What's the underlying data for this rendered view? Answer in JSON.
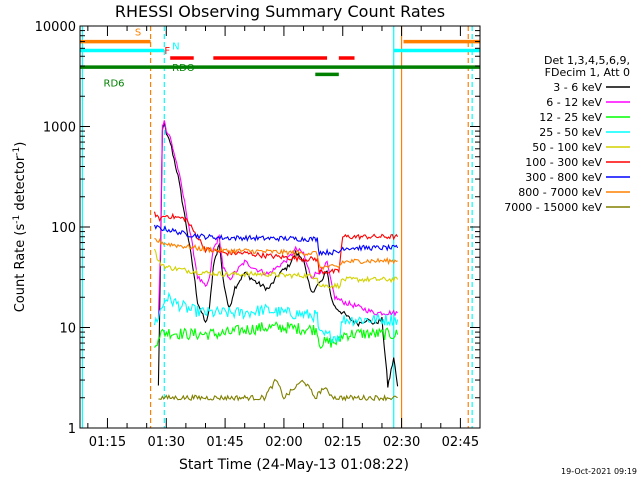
{
  "chart_data": {
    "type": "line",
    "title": "RHESSI Observing Summary Count Rates",
    "xlabel": "Start Time (24-May-13 01:08:22)",
    "ylabel_main": "Count Rate (s",
    "ylabel_sup1": "-1",
    "ylabel_mid": " detector",
    "ylabel_sup2": "-1",
    "ylabel_end": ")",
    "footer": "19-Oct-2021 09:19",
    "y_scale": "log",
    "ylim": [
      1,
      10000
    ],
    "xlim_minutes": [
      68,
      170
    ],
    "x_ticks": [
      {
        "label": "01:15",
        "minutes": 75
      },
      {
        "label": "01:30",
        "minutes": 90
      },
      {
        "label": "01:45",
        "minutes": 105
      },
      {
        "label": "02:00",
        "minutes": 120
      },
      {
        "label": "02:15",
        "minutes": 135
      },
      {
        "label": "02:30",
        "minutes": 150
      },
      {
        "label": "02:45",
        "minutes": 165
      }
    ],
    "y_ticks": [
      {
        "label": "1",
        "value": 1
      },
      {
        "label": "10",
        "value": 10
      },
      {
        "label": "100",
        "value": 100
      },
      {
        "label": "1000",
        "value": 1000
      },
      {
        "label": "10000",
        "value": 10000
      }
    ],
    "legend_header": [
      "Det 1,3,4,5,6,9,",
      "FDecim 1, Att 0"
    ],
    "legend_placement": "right",
    "series": [
      {
        "name": "3 - 6 keV",
        "color": "#000000",
        "x": [
          88.0,
          88.5,
          89.0,
          89.5,
          90.0,
          91.0,
          93.0,
          95.0,
          97.0,
          98.0,
          100.0,
          101.0,
          102.0,
          103.5,
          104.5,
          106.0,
          107.5,
          110.0,
          113.0,
          116.0,
          119.0,
          121.0,
          123.0,
          125.0,
          126.0,
          127.0,
          128.0,
          130.0,
          131.0,
          132.0,
          133.0,
          135.0,
          137.0,
          139.0,
          141.0,
          143.0,
          145.0,
          146.5,
          147.0,
          148.0,
          149.0
        ],
        "y": [
          2.6,
          40,
          900,
          1100,
          820,
          700,
          320,
          110,
          35,
          18,
          11,
          15,
          40,
          70,
          30,
          15,
          25,
          35,
          28,
          24,
          35,
          40,
          55,
          48,
          30,
          22,
          25,
          30,
          38,
          20,
          16,
          14,
          12,
          11,
          12,
          11,
          12,
          2.6,
          3.2,
          5,
          2.6
        ]
      },
      {
        "name": "6 - 12 keV",
        "color": "#ff00ff",
        "x": [
          88.0,
          88.5,
          89.0,
          89.5,
          90.0,
          91.0,
          93.0,
          95.0,
          97.0,
          98.0,
          100.0,
          101.0,
          102.0,
          103.5,
          104.5,
          106.0,
          107.5,
          110.0,
          113.0,
          116.0,
          119.0,
          121.0,
          123.0,
          125.0,
          126.0,
          127.0,
          128.0,
          130.0,
          131.0,
          132.0,
          133.0,
          135.0,
          137.0,
          139.0,
          141.0,
          143.0,
          145.0,
          146.5,
          147.0,
          148.0,
          149.0
        ],
        "y": [
          12,
          60,
          1000,
          1200,
          900,
          780,
          380,
          150,
          55,
          32,
          25,
          30,
          60,
          80,
          40,
          30,
          35,
          45,
          38,
          34,
          42,
          48,
          60,
          55,
          40,
          32,
          34,
          38,
          44,
          28,
          20,
          18,
          17,
          16,
          15,
          14,
          14,
          14,
          14,
          14,
          14
        ]
      },
      {
        "name": "12 - 25 keV",
        "color": "#00ff00",
        "x": [
          87.0,
          88.0,
          90.0,
          95.0,
          100.0,
          105.0,
          110.0,
          115.0,
          120.0,
          125.0,
          128.5,
          129.0,
          132.0,
          134.0,
          135.0,
          140.0,
          145.0,
          149.0
        ],
        "y": [
          6.0,
          8.5,
          9.0,
          8.6,
          8.6,
          8.7,
          9.5,
          10.0,
          10.0,
          9.7,
          9.6,
          7.0,
          7.1,
          7.2,
          8.5,
          8.7,
          8.6,
          8.5
        ]
      },
      {
        "name": "25 - 50 keV",
        "color": "#00ffff",
        "x": [
          87.0,
          88.0,
          90.0,
          93.0,
          96.0,
          100.0,
          105.0,
          110.0,
          115.0,
          120.0,
          125.0,
          128.5,
          129.0,
          132.0,
          134.0,
          135.0,
          140.0,
          145.0,
          149.0
        ],
        "y": [
          11,
          13,
          20,
          17,
          15,
          14,
          14,
          14,
          15,
          14,
          13.5,
          13,
          8.5,
          8.2,
          8.0,
          12,
          12,
          12,
          12
        ]
      },
      {
        "name": "50 - 100 keV",
        "color": "#d2d200",
        "x": [
          87.0,
          88.0,
          90.0,
          95.0,
          100.0,
          105.0,
          110.0,
          115.0,
          120.0,
          125.0,
          128.5,
          129.0,
          134.0,
          135.0,
          140.0,
          145.0,
          149.0
        ],
        "y": [
          60,
          45,
          40,
          37,
          35,
          34,
          34,
          34,
          33,
          33,
          32,
          26,
          26,
          30,
          30,
          30,
          30
        ]
      },
      {
        "name": "100 - 300 keV",
        "color": "#ff0000",
        "x": [
          87.0,
          88.0,
          90.0,
          95.0,
          100.0,
          105.0,
          110.0,
          115.0,
          120.0,
          125.0,
          128.5,
          129.0,
          134.0,
          135.0,
          140.0,
          145.0,
          149.0
        ],
        "y": [
          140,
          120,
          130,
          120,
          60,
          55,
          55,
          52,
          50,
          48,
          48,
          36,
          36,
          80,
          80,
          80,
          80
        ]
      },
      {
        "name": "300 - 800 keV",
        "color": "#0000ff",
        "x": [
          87.0,
          88.0,
          90.0,
          95.0,
          100.0,
          105.0,
          110.0,
          115.0,
          120.0,
          125.0,
          128.5,
          129.0,
          134.0,
          135.0,
          140.0,
          145.0,
          149.0
        ],
        "y": [
          100,
          98,
          95,
          85,
          80,
          78,
          78,
          77,
          77,
          76,
          76,
          56,
          56,
          62,
          62,
          62,
          62
        ]
      },
      {
        "name": "800 - 7000 keV",
        "color": "#ff8000",
        "x": [
          87.0,
          88.0,
          90.0,
          95.0,
          100.0,
          105.0,
          110.0,
          115.0,
          120.0,
          125.0,
          128.5,
          129.0,
          134.0,
          135.0,
          140.0,
          145.0,
          149.0
        ],
        "y": [
          75,
          72,
          68,
          64,
          60,
          58,
          58,
          57,
          56,
          55,
          55,
          40,
          40,
          45,
          46,
          46,
          46
        ]
      },
      {
        "name": "7000 - 15000 keV",
        "color": "#808000",
        "x": [
          88.0,
          90.0,
          95.0,
          100.0,
          105.0,
          110.0,
          115.0,
          118.0,
          120.0,
          125.0,
          128.0,
          130.0,
          133.0,
          135.0,
          140.0,
          145.0,
          147.0,
          149.0
        ],
        "y": [
          2.0,
          2.0,
          2.0,
          2.0,
          2.0,
          2.0,
          2.0,
          3.0,
          2.0,
          3.0,
          2.0,
          2.5,
          2.0,
          2.0,
          2.0,
          2.0,
          2.0,
          2.0
        ]
      }
    ],
    "vertical_lines": [
      {
        "minutes": 86,
        "color": "#ff8000",
        "style": "dashed"
      },
      {
        "minutes": 89.5,
        "color": "#00ffff",
        "style": "dashed"
      },
      {
        "minutes": 148,
        "color": "#00ffff",
        "style": "solid"
      },
      {
        "minutes": 150,
        "color": "#ff8000",
        "style": "solid"
      },
      {
        "minutes": 167,
        "color": "#ff8000",
        "style": "dashed"
      },
      {
        "minutes": 168,
        "color": "#00ffff",
        "style": "dashed"
      },
      {
        "minutes": 68.6,
        "color": "#00ffff",
        "style": "solid"
      }
    ],
    "flag_bars": [
      {
        "label": "S",
        "color": "#ff8000",
        "level": 7000,
        "segments": [
          [
            68,
            86
          ],
          [
            150.5,
            170
          ]
        ]
      },
      {
        "label": "N",
        "color": "#00ffff",
        "level": 5700,
        "segments": [
          [
            68,
            89.5
          ],
          [
            148,
            170
          ]
        ]
      },
      {
        "label": "F",
        "color": "#ff0000",
        "level": 4800,
        "segments": [
          [
            91,
            97
          ],
          [
            102,
            131
          ],
          [
            134,
            138
          ]
        ]
      },
      {
        "label": "RDO",
        "color": "#008000",
        "level": 3900,
        "segments": [
          [
            68,
            170
          ]
        ]
      },
      {
        "label": "RD6",
        "color": "#008000",
        "level": 3300,
        "segments": [
          [
            128,
            134
          ]
        ]
      }
    ]
  }
}
